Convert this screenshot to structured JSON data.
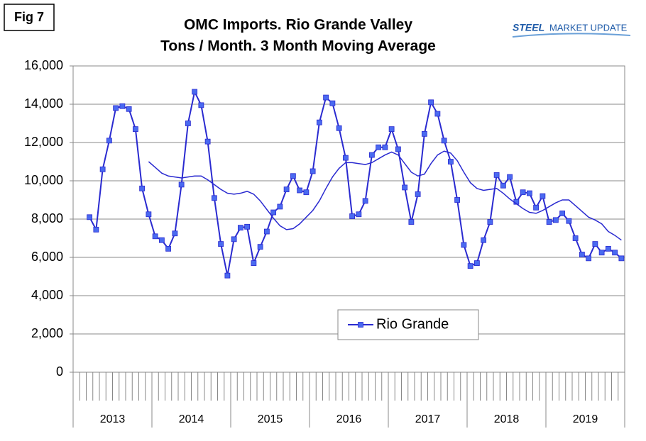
{
  "figure_label": "Fig 7",
  "logo": {
    "brand": "STEEL",
    "rest": "MARKET UPDATE"
  },
  "chart_data": {
    "type": "line",
    "title": "OMC Imports. Rio Grande Valley",
    "subtitle": "Tons / Month. 3 Month Moving Average",
    "groups": [
      "2013",
      "2014",
      "2015",
      "2016",
      "2017",
      "2018",
      "2019"
    ],
    "categories": [
      null,
      null,
      null,
      null,
      null,
      null,
      null,
      null,
      null,
      null,
      null,
      null,
      null,
      null,
      null,
      null,
      null,
      null,
      null,
      null,
      null,
      null,
      null,
      null,
      null,
      null,
      null,
      null,
      null,
      null,
      null,
      null,
      null,
      null,
      null,
      null,
      null,
      null,
      null,
      null,
      null,
      null,
      null,
      null,
      null,
      null,
      null,
      null,
      null,
      null,
      null,
      null,
      null,
      null,
      null,
      null,
      null,
      null,
      null,
      null,
      null,
      null,
      null,
      null,
      null,
      null,
      null,
      null,
      null,
      null,
      null,
      null,
      null,
      null,
      null,
      null,
      null,
      null,
      null,
      null,
      null,
      null,
      null,
      null
    ],
    "series": [
      {
        "name": "Rio Grande",
        "color": "#2a2ad0",
        "marker_color": "#4a6af0",
        "markers": true,
        "values": [
          null,
          null,
          8100,
          7450,
          10600,
          12100,
          13800,
          13900,
          13750,
          12700,
          9600,
          8250,
          7100,
          6900,
          6450,
          7250,
          9800,
          13000,
          14650,
          13950,
          12050,
          9100,
          6700,
          5050,
          6950,
          7550,
          7600,
          5700,
          6550,
          7350,
          8350,
          8650,
          9550,
          10250,
          9500,
          9400,
          10500,
          13050,
          14350,
          14050,
          12750,
          11200,
          8150,
          8250,
          8950,
          11350,
          11750,
          11750,
          12700,
          11650,
          9650,
          7850,
          9300,
          12450,
          14100,
          13500,
          12100,
          11000,
          9000,
          6650,
          5550,
          5700,
          6900,
          7850,
          10300,
          9750,
          10200,
          8900,
          9400,
          9350,
          8600,
          9200,
          7850,
          7950,
          8300,
          7900,
          7000,
          6150,
          5950,
          6700,
          6250,
          6450,
          6250,
          5950
        ]
      },
      {
        "color": "#2a2ad0",
        "markers": false,
        "values": [
          null,
          null,
          null,
          null,
          null,
          null,
          null,
          null,
          null,
          null,
          null,
          11000,
          10700,
          10400,
          10250,
          10200,
          10150,
          10200,
          10250,
          10250,
          10050,
          9800,
          9550,
          9350,
          9300,
          9350,
          9450,
          9300,
          8950,
          8500,
          8050,
          7650,
          7450,
          7500,
          7750,
          8100,
          8450,
          8950,
          9600,
          10200,
          10650,
          10950,
          10950,
          10900,
          10850,
          10950,
          11150,
          11350,
          11500,
          11350,
          10900,
          10450,
          10250,
          10350,
          10900,
          11350,
          11550,
          11450,
          11050,
          10450,
          9900,
          9600,
          9500,
          9550,
          9600,
          9350,
          9050,
          8800,
          8550,
          8350,
          8300,
          8450,
          8650,
          8850,
          9000,
          9000,
          8700,
          8400,
          8100,
          7950,
          7750,
          7350,
          7150,
          6900
        ]
      }
    ],
    "ylim": [
      0,
      16000
    ],
    "yticks": [
      {
        "value": 0,
        "label": "0"
      },
      {
        "value": 2000,
        "label": "2,000"
      },
      {
        "value": 4000,
        "label": "4,000"
      },
      {
        "value": 6000,
        "label": "6,000"
      },
      {
        "value": 8000,
        "label": "8,000"
      },
      {
        "value": 10000,
        "label": "10,000"
      },
      {
        "value": 12000,
        "label": "12,000"
      },
      {
        "value": 14000,
        "label": "14,000"
      },
      {
        "value": 16000,
        "label": "16,000"
      }
    ],
    "grid": true
  }
}
